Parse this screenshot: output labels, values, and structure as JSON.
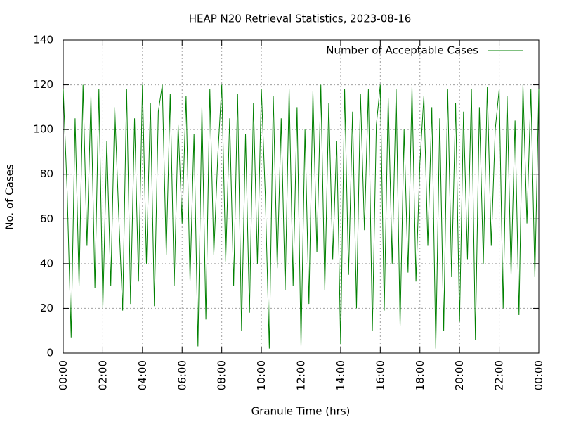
{
  "chart_data": {
    "type": "line",
    "title": "HEAP N20 Retrieval Statistics, 2023-08-16",
    "xlabel": "Granule Time (hrs)",
    "ylabel": "No. of Cases",
    "x": [
      0,
      0.2,
      0.4,
      0.6,
      0.8,
      1,
      1.2,
      1.4,
      1.6,
      1.8,
      2,
      2.2,
      2.4,
      2.6,
      2.8,
      3,
      3.2,
      3.4,
      3.6,
      3.8,
      4,
      4.2,
      4.4,
      4.6,
      4.8,
      5,
      5.2,
      5.4,
      5.6,
      5.8,
      6,
      6.2,
      6.4,
      6.6,
      6.8,
      7,
      7.2,
      7.4,
      7.6,
      7.8,
      8,
      8.2,
      8.4,
      8.6,
      8.8,
      9,
      9.2,
      9.4,
      9.6,
      9.8,
      10,
      10.2,
      10.4,
      10.6,
      10.8,
      11,
      11.2,
      11.4,
      11.6,
      11.8,
      12,
      12.2,
      12.4,
      12.6,
      12.8,
      13,
      13.2,
      13.4,
      13.6,
      13.8,
      14,
      14.2,
      14.4,
      14.6,
      14.8,
      15,
      15.2,
      15.4,
      15.6,
      15.8,
      16,
      16.2,
      16.4,
      16.6,
      16.8,
      17,
      17.2,
      17.4,
      17.6,
      17.8,
      18,
      18.2,
      18.4,
      18.6,
      18.8,
      19,
      19.2,
      19.4,
      19.6,
      19.8,
      20,
      20.2,
      20.4,
      20.6,
      20.8,
      21,
      21.2,
      21.4,
      21.6,
      21.8,
      22,
      22.2,
      22.4,
      22.6,
      22.8,
      23,
      23.2,
      23.4,
      23.6,
      23.8,
      24
    ],
    "series": [
      {
        "name": "Number of Acceptable Cases",
        "color": "#008000",
        "values": [
          118,
          72,
          7,
          105,
          30,
          120,
          48,
          115,
          29,
          118,
          20,
          95,
          30,
          110,
          62,
          19,
          118,
          22,
          105,
          32,
          120,
          40,
          112,
          21,
          108,
          120,
          44,
          116,
          30,
          102,
          58,
          115,
          32,
          98,
          3,
          110,
          15,
          118,
          44,
          88,
          120,
          41,
          105,
          30,
          116,
          10,
          98,
          18,
          112,
          40,
          118,
          70,
          2,
          115,
          38,
          105,
          28,
          118,
          30,
          110,
          3,
          100,
          22,
          117,
          45,
          120,
          28,
          112,
          42,
          95,
          4,
          118,
          35,
          108,
          20,
          116,
          55,
          118,
          10,
          102,
          120,
          19,
          114,
          40,
          118,
          12,
          100,
          36,
          119,
          32,
          85,
          115,
          48,
          110,
          2,
          105,
          10,
          118,
          34,
          112,
          14,
          108,
          42,
          118,
          6,
          110,
          40,
          119,
          48,
          100,
          118,
          20,
          115,
          35,
          104,
          17,
          120,
          58,
          118,
          34,
          118
        ]
      }
    ],
    "xlim": [
      0,
      24
    ],
    "xticks": [
      {
        "value": 0,
        "label": "00:00"
      },
      {
        "value": 2,
        "label": "02:00"
      },
      {
        "value": 4,
        "label": "04:00"
      },
      {
        "value": 6,
        "label": "06:00"
      },
      {
        "value": 8,
        "label": "08:00"
      },
      {
        "value": 10,
        "label": "10:00"
      },
      {
        "value": 12,
        "label": "12:00"
      },
      {
        "value": 14,
        "label": "14:00"
      },
      {
        "value": 16,
        "label": "16:00"
      },
      {
        "value": 18,
        "label": "18:00"
      },
      {
        "value": 20,
        "label": "20:00"
      },
      {
        "value": 22,
        "label": "22:00"
      },
      {
        "value": 24,
        "label": "00:00"
      }
    ],
    "ylim": [
      0,
      140
    ],
    "yticks": [
      0,
      20,
      40,
      60,
      80,
      100,
      120,
      140
    ],
    "grid": true,
    "legend": "top-right"
  }
}
